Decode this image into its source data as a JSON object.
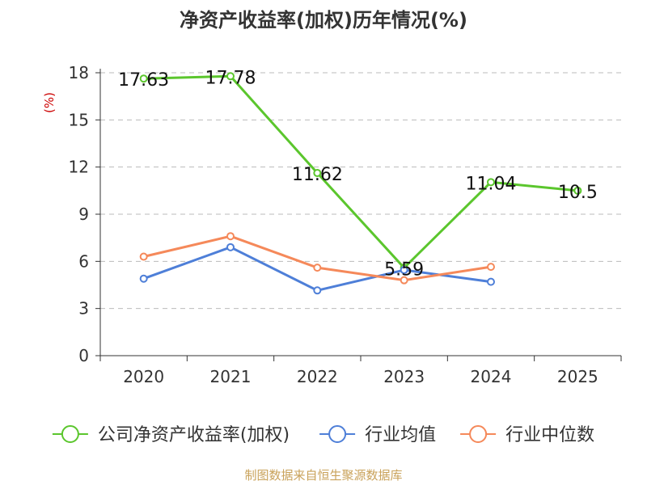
{
  "chart_data": {
    "type": "line",
    "title": "净资产收益率(加权)历年情况(%)",
    "ylabel": "(%)",
    "xlabel": "",
    "categories": [
      "2020",
      "2021",
      "2022",
      "2023",
      "2024",
      "2025"
    ],
    "ylim": [
      0,
      18
    ],
    "yticks": [
      0,
      3,
      6,
      9,
      12,
      15,
      18
    ],
    "grid": true,
    "legend_position": "bottom",
    "series": [
      {
        "name": "公司净资产收益率(加权)",
        "color": "#5bc62d",
        "values": [
          17.63,
          17.78,
          11.62,
          5.59,
          11.04,
          10.5
        ],
        "labels": [
          "17.63",
          "17.78",
          "11.62",
          "5.59",
          "11.04",
          "10.5"
        ],
        "show_labels": true
      },
      {
        "name": "行业均值",
        "color": "#4e7fd8",
        "values": [
          4.9,
          6.9,
          4.15,
          5.45,
          4.7,
          null
        ],
        "show_labels": false
      },
      {
        "name": "行业中位数",
        "color": "#f5895a",
        "values": [
          6.3,
          7.6,
          5.6,
          4.8,
          5.65,
          null
        ],
        "show_labels": false
      }
    ],
    "source": "制图数据来自恒生聚源数据库",
    "colors": {
      "title": "#333333",
      "ylabel": "#cc0000",
      "grid": "#bbbbbb",
      "axis": "#333333",
      "source": "#c9a25a"
    }
  }
}
